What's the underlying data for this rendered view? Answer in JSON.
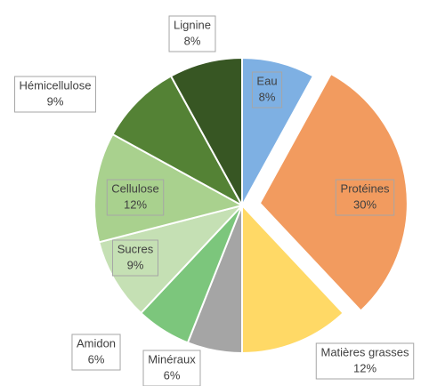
{
  "chart_data": {
    "type": "pie",
    "categories": [
      "Eau",
      "Protéines",
      "Matières grasses",
      "Minéraux",
      "Amidon",
      "Sucres",
      "Cellulose",
      "Hémicellulose",
      "Lignine"
    ],
    "values": [
      8,
      30,
      12,
      6,
      6,
      9,
      12,
      9,
      8
    ],
    "value_labels": [
      "8%",
      "30%",
      "12%",
      "6%",
      "6%",
      "9%",
      "12%",
      "9%",
      "8%"
    ],
    "colors": [
      "#7eb0e3",
      "#f29b5f",
      "#ffd966",
      "#a5a5a5",
      "#7cc67c",
      "#c5e0b4",
      "#a9d18e",
      "#548235",
      "#375623"
    ],
    "exploded": [
      "Protéines"
    ]
  }
}
